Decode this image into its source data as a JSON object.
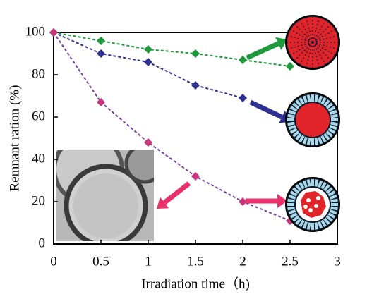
{
  "chart_data": {
    "type": "line",
    "x_label": "Irradiation time（h)",
    "y_label": "Remnant ration (%)",
    "x": [
      0,
      0.5,
      1,
      1.5,
      2,
      2.5
    ],
    "series": [
      {
        "color": "#1e9a3c",
        "values": [
          100,
          96,
          92,
          90,
          87,
          84
        ]
      },
      {
        "color": "#2e3192",
        "values": [
          100,
          90,
          86,
          75,
          69,
          null
        ]
      },
      {
        "color": "#c8357a",
        "line_color": "#7a3fa0",
        "values": [
          100,
          67,
          48,
          32,
          20,
          11
        ]
      }
    ],
    "xlim": [
      0,
      3
    ],
    "xticks": [
      0,
      0.5,
      1,
      1.5,
      2,
      2.5,
      3
    ],
    "ylim": [
      0,
      100
    ],
    "yticks": [
      0,
      20,
      40,
      60,
      80,
      100
    ],
    "grid": false
  }
}
